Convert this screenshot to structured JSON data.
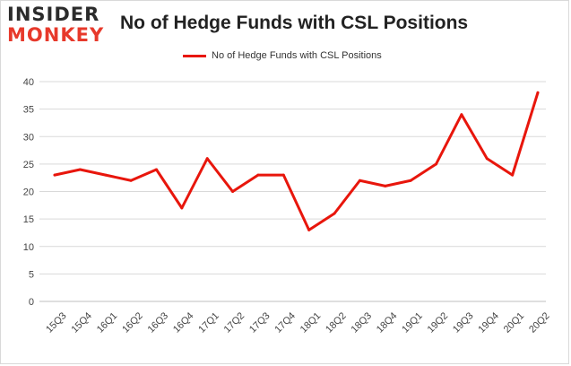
{
  "logo": {
    "line1": "INSIDER",
    "line2": "MONKEY"
  },
  "chart_data": {
    "type": "line",
    "title": "No of Hedge Funds with CSL Positions",
    "xlabel": "",
    "ylabel": "",
    "categories": [
      "15Q3",
      "15Q4",
      "16Q1",
      "16Q2",
      "16Q3",
      "16Q4",
      "17Q1",
      "17Q2",
      "17Q3",
      "17Q4",
      "18Q1",
      "18Q2",
      "18Q3",
      "18Q4",
      "19Q1",
      "19Q2",
      "19Q3",
      "19Q4",
      "20Q1",
      "20Q2"
    ],
    "series": [
      {
        "name": "No of Hedge Funds with CSL Positions",
        "values": [
          23,
          24,
          23,
          22,
          24,
          17,
          26,
          20,
          23,
          23,
          13,
          16,
          22,
          21,
          22,
          25,
          34,
          26,
          23,
          38
        ],
        "color": "#e8160c"
      }
    ],
    "ylim": [
      0,
      40
    ],
    "yticks": [
      0,
      5,
      10,
      15,
      20,
      25,
      30,
      35,
      40
    ],
    "grid": true,
    "legend": "top-center"
  }
}
